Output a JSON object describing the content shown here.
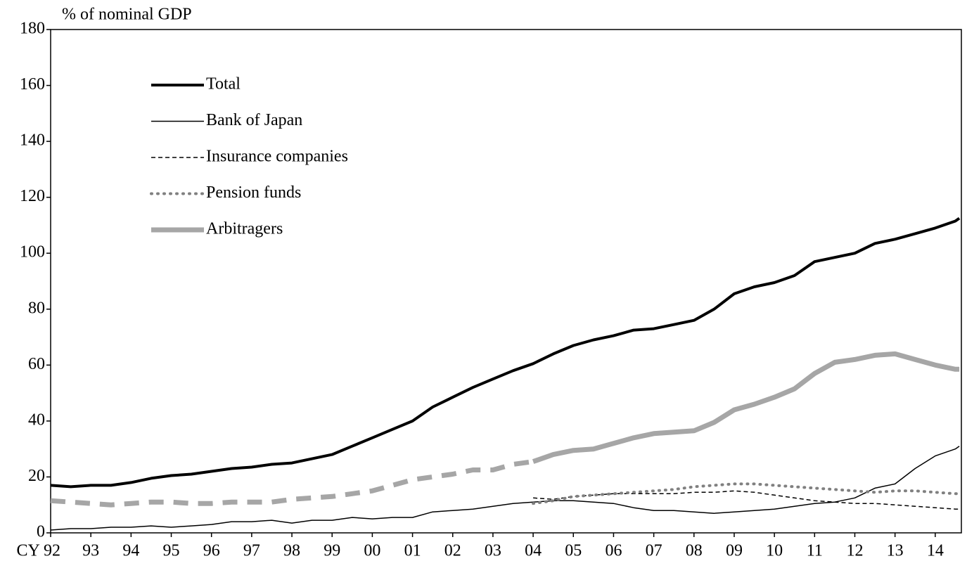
{
  "chart_data": {
    "type": "line",
    "y_axis_label": "% of nominal GDP",
    "x": [
      1992,
      1992.5,
      1993,
      1993.5,
      1994,
      1994.5,
      1995,
      1995.5,
      1996,
      1996.5,
      1997,
      1997.5,
      1998,
      1998.5,
      1999,
      1999.5,
      2000,
      2000.5,
      2001,
      2001.5,
      2002,
      2002.5,
      2003,
      2003.5,
      2004,
      2004.5,
      2005,
      2005.5,
      2006,
      2006.5,
      2007,
      2007.5,
      2008,
      2008.5,
      2009,
      2009.5,
      2010,
      2010.5,
      2011,
      2011.5,
      2012,
      2012.5,
      2013,
      2013.5,
      2014,
      2014.5,
      2014.6
    ],
    "series": [
      {
        "name": "Total",
        "color": "#000000",
        "dash": "solid",
        "values": [
          17,
          16.5,
          17,
          17,
          18,
          19.5,
          20.5,
          21,
          22,
          23,
          23.5,
          24.5,
          25,
          26.5,
          28,
          31,
          34,
          37,
          40,
          45,
          48.5,
          52,
          55,
          58,
          60.5,
          64,
          67,
          69,
          70.5,
          72.5,
          73,
          74.5,
          76,
          80,
          85.5,
          88,
          89.5,
          92,
          97,
          98.5,
          100,
          103.5,
          105,
          107,
          109,
          111.5,
          112.5
        ]
      },
      {
        "name": "Bank of Japan",
        "color": "#000000",
        "dash": "solid",
        "values": [
          1,
          1.5,
          1.5,
          2,
          2,
          2.5,
          2,
          2.5,
          3,
          4,
          4,
          4.5,
          3.5,
          4.5,
          4.5,
          5.5,
          5,
          5.5,
          5.5,
          7.5,
          8,
          8.5,
          9.5,
          10.5,
          11,
          11.5,
          11.5,
          11,
          10.5,
          9,
          8,
          8,
          7.5,
          7,
          7.5,
          8,
          8.5,
          9.5,
          10.5,
          11,
          12.5,
          16,
          17.5,
          23,
          27.5,
          30,
          31
        ]
      },
      {
        "name": "Insurance companies",
        "color": "#000000",
        "dash": "dashed",
        "values": [
          null,
          null,
          null,
          null,
          null,
          null,
          null,
          null,
          null,
          null,
          null,
          null,
          null,
          null,
          null,
          null,
          null,
          null,
          null,
          null,
          null,
          null,
          null,
          null,
          12.5,
          12,
          13,
          13.5,
          14,
          14,
          14,
          14,
          14.5,
          14.5,
          15,
          14.5,
          13.5,
          12.5,
          11.5,
          11,
          10.5,
          10.5,
          10,
          9.5,
          9,
          8.5,
          8.5
        ]
      },
      {
        "name": "Pension funds",
        "color": "#808080",
        "dash": "dotted",
        "values": [
          null,
          null,
          null,
          null,
          null,
          null,
          null,
          null,
          null,
          null,
          null,
          null,
          null,
          null,
          null,
          null,
          null,
          null,
          null,
          null,
          null,
          null,
          null,
          null,
          10.5,
          11.5,
          13,
          13.5,
          14,
          14.5,
          15,
          15.5,
          16.5,
          17,
          17.5,
          17.5,
          17,
          16.5,
          16,
          15.5,
          15,
          14.5,
          15,
          15,
          14.5,
          14,
          14
        ]
      },
      {
        "name": "Arbitragers",
        "color": "#a6a6a6",
        "dash": "solid",
        "dashed_until": 2004,
        "values": [
          11.5,
          11,
          10.5,
          10,
          10.5,
          11,
          11,
          10.5,
          10.5,
          11,
          11,
          11,
          12,
          12.5,
          13,
          14,
          15,
          17,
          19,
          20,
          21,
          22.5,
          22.5,
          24.5,
          25.5,
          28,
          29.5,
          30,
          32,
          34,
          35.5,
          36,
          36.5,
          39.5,
          44,
          46,
          48.5,
          51.5,
          57,
          61,
          62,
          63.5,
          64,
          62,
          60,
          58.5,
          58.5
        ]
      }
    ],
    "xlim": [
      1992,
      2014.65
    ],
    "xticks": [
      {
        "value": 1992,
        "label": "CY 92"
      },
      {
        "value": 1993,
        "label": "93"
      },
      {
        "value": 1994,
        "label": "94"
      },
      {
        "value": 1995,
        "label": "95"
      },
      {
        "value": 1996,
        "label": "96"
      },
      {
        "value": 1997,
        "label": "97"
      },
      {
        "value": 1998,
        "label": "98"
      },
      {
        "value": 1999,
        "label": "99"
      },
      {
        "value": 2000,
        "label": "00"
      },
      {
        "value": 2001,
        "label": "01"
      },
      {
        "value": 2002,
        "label": "02"
      },
      {
        "value": 2003,
        "label": "03"
      },
      {
        "value": 2004,
        "label": "04"
      },
      {
        "value": 2005,
        "label": "05"
      },
      {
        "value": 2006,
        "label": "06"
      },
      {
        "value": 2007,
        "label": "07"
      },
      {
        "value": 2008,
        "label": "08"
      },
      {
        "value": 2009,
        "label": "09"
      },
      {
        "value": 2010,
        "label": "10"
      },
      {
        "value": 2011,
        "label": "11"
      },
      {
        "value": 2012,
        "label": "12"
      },
      {
        "value": 2013,
        "label": "13"
      },
      {
        "value": 2014,
        "label": "14"
      }
    ],
    "ylim": [
      0,
      180
    ],
    "yticks": [
      0,
      20,
      40,
      60,
      80,
      100,
      120,
      140,
      160,
      180
    ],
    "grid": false,
    "legend": "upper left"
  }
}
